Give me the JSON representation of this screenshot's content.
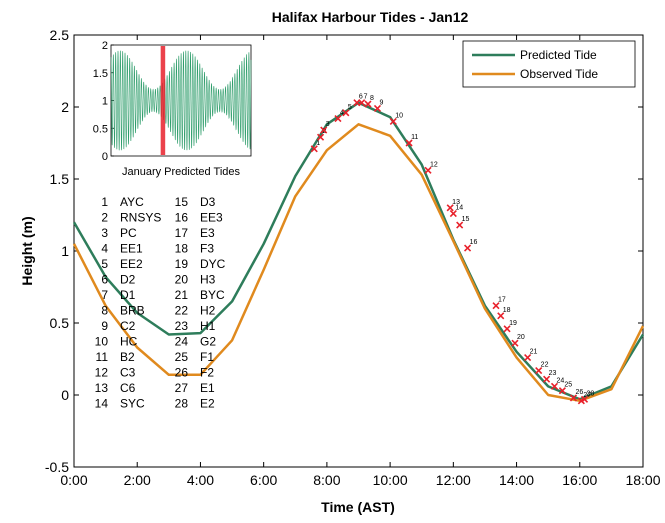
{
  "chart_data": {
    "type": "line",
    "title": "Halifax Harbour Tides - Jan12",
    "xlabel": "Time (AST)",
    "ylabel": "Height (m)",
    "xlim": [
      0,
      18
    ],
    "ylim": [
      -0.5,
      2.5
    ],
    "x_ticks": [
      0,
      2,
      4,
      6,
      8,
      10,
      12,
      14,
      16,
      18
    ],
    "x_tick_labels": [
      "0:00",
      "2:00",
      "4:00",
      "6:00",
      "8:00",
      "10:00",
      "12:00",
      "14:00",
      "16:00",
      "18:00"
    ],
    "y_ticks": [
      -0.5,
      0,
      0.5,
      1,
      1.5,
      2,
      2.5
    ],
    "y_tick_labels": [
      "-0.5",
      "0",
      "0.5",
      "1",
      "1.5",
      "2",
      "2.5"
    ],
    "legend_position": "top-right",
    "series": [
      {
        "name": "Predicted Tide",
        "color": "#2e7d5b",
        "x": [
          0,
          1,
          2,
          3,
          4,
          5,
          6,
          7,
          8,
          9,
          10,
          11,
          12,
          13,
          14,
          15,
          16,
          17,
          18
        ],
        "y": [
          1.2,
          0.82,
          0.57,
          0.42,
          0.43,
          0.65,
          1.05,
          1.52,
          1.88,
          2.03,
          1.93,
          1.6,
          1.08,
          0.62,
          0.3,
          0.06,
          -0.03,
          0.06,
          0.42
        ]
      },
      {
        "name": "Observed Tide",
        "color": "#e08a1e",
        "x": [
          0,
          1,
          2,
          3,
          4,
          5,
          6,
          7,
          8,
          9,
          10,
          11,
          12,
          13,
          14,
          15,
          16,
          17,
          18
        ],
        "y": [
          1.05,
          0.62,
          0.33,
          0.14,
          0.14,
          0.38,
          0.87,
          1.38,
          1.7,
          1.88,
          1.8,
          1.53,
          1.07,
          0.6,
          0.26,
          0.0,
          -0.04,
          0.04,
          0.48
        ]
      }
    ],
    "markers": {
      "color": "#e8212b",
      "points": [
        {
          "n": "1",
          "x": 7.6,
          "y": 1.71
        },
        {
          "n": "2",
          "x": 7.8,
          "y": 1.79
        },
        {
          "n": "3",
          "x": 7.9,
          "y": 1.84
        },
        {
          "n": "4",
          "x": 8.35,
          "y": 1.92
        },
        {
          "n": "5",
          "x": 8.6,
          "y": 1.96
        },
        {
          "n": "6",
          "x": 8.95,
          "y": 2.03
        },
        {
          "n": "7",
          "x": 9.1,
          "y": 2.03
        },
        {
          "n": "8",
          "x": 9.3,
          "y": 2.02
        },
        {
          "n": "9",
          "x": 9.6,
          "y": 1.99
        },
        {
          "n": "10",
          "x": 10.1,
          "y": 1.9
        },
        {
          "n": "11",
          "x": 10.6,
          "y": 1.75
        },
        {
          "n": "12",
          "x": 11.2,
          "y": 1.56
        },
        {
          "n": "13",
          "x": 11.9,
          "y": 1.3
        },
        {
          "n": "14",
          "x": 12.0,
          "y": 1.26
        },
        {
          "n": "15",
          "x": 12.2,
          "y": 1.18
        },
        {
          "n": "16",
          "x": 12.45,
          "y": 1.02
        },
        {
          "n": "17",
          "x": 13.35,
          "y": 0.62
        },
        {
          "n": "18",
          "x": 13.5,
          "y": 0.55
        },
        {
          "n": "19",
          "x": 13.7,
          "y": 0.46
        },
        {
          "n": "20",
          "x": 13.95,
          "y": 0.36
        },
        {
          "n": "21",
          "x": 14.35,
          "y": 0.26
        },
        {
          "n": "22",
          "x": 14.7,
          "y": 0.17
        },
        {
          "n": "23",
          "x": 14.95,
          "y": 0.11
        },
        {
          "n": "24",
          "x": 15.2,
          "y": 0.06
        },
        {
          "n": "25",
          "x": 15.45,
          "y": 0.03
        },
        {
          "n": "26",
          "x": 15.8,
          "y": -0.02
        },
        {
          "n": "27",
          "x": 16.05,
          "y": -0.04
        },
        {
          "n": "28",
          "x": 16.15,
          "y": -0.03
        }
      ]
    },
    "station_list": [
      [
        "1",
        "AYC"
      ],
      [
        "2",
        "RNSYS"
      ],
      [
        "3",
        "PC"
      ],
      [
        "4",
        "EE1"
      ],
      [
        "5",
        "EE2"
      ],
      [
        "6",
        "D2"
      ],
      [
        "7",
        "D1"
      ],
      [
        "8",
        "BRB"
      ],
      [
        "9",
        "C2"
      ],
      [
        "10",
        "HC"
      ],
      [
        "11",
        "B2"
      ],
      [
        "12",
        "C3"
      ],
      [
        "13",
        "C6"
      ],
      [
        "14",
        "SYC"
      ],
      [
        "15",
        "D3"
      ],
      [
        "16",
        "EE3"
      ],
      [
        "17",
        "E3"
      ],
      [
        "18",
        "F3"
      ],
      [
        "19",
        "DYC"
      ],
      [
        "20",
        "H3"
      ],
      [
        "21",
        "BYC"
      ],
      [
        "22",
        "H2"
      ],
      [
        "23",
        "H1"
      ],
      [
        "24",
        "G2"
      ],
      [
        "25",
        "F1"
      ],
      [
        "26",
        "F2"
      ],
      [
        "27",
        "E1"
      ],
      [
        "28",
        "E2"
      ]
    ],
    "inset": {
      "title": "January Predicted Tides",
      "ylim": [
        0,
        2
      ],
      "y_ticks": [
        0,
        0.5,
        1,
        1.5,
        2
      ],
      "y_tick_labels": [
        "0",
        "0.5",
        "1",
        "1.5",
        "2"
      ],
      "days": 31,
      "highlight_day": 12,
      "line_color": "#2e9d6b",
      "highlight_color": "#e8212b"
    }
  }
}
